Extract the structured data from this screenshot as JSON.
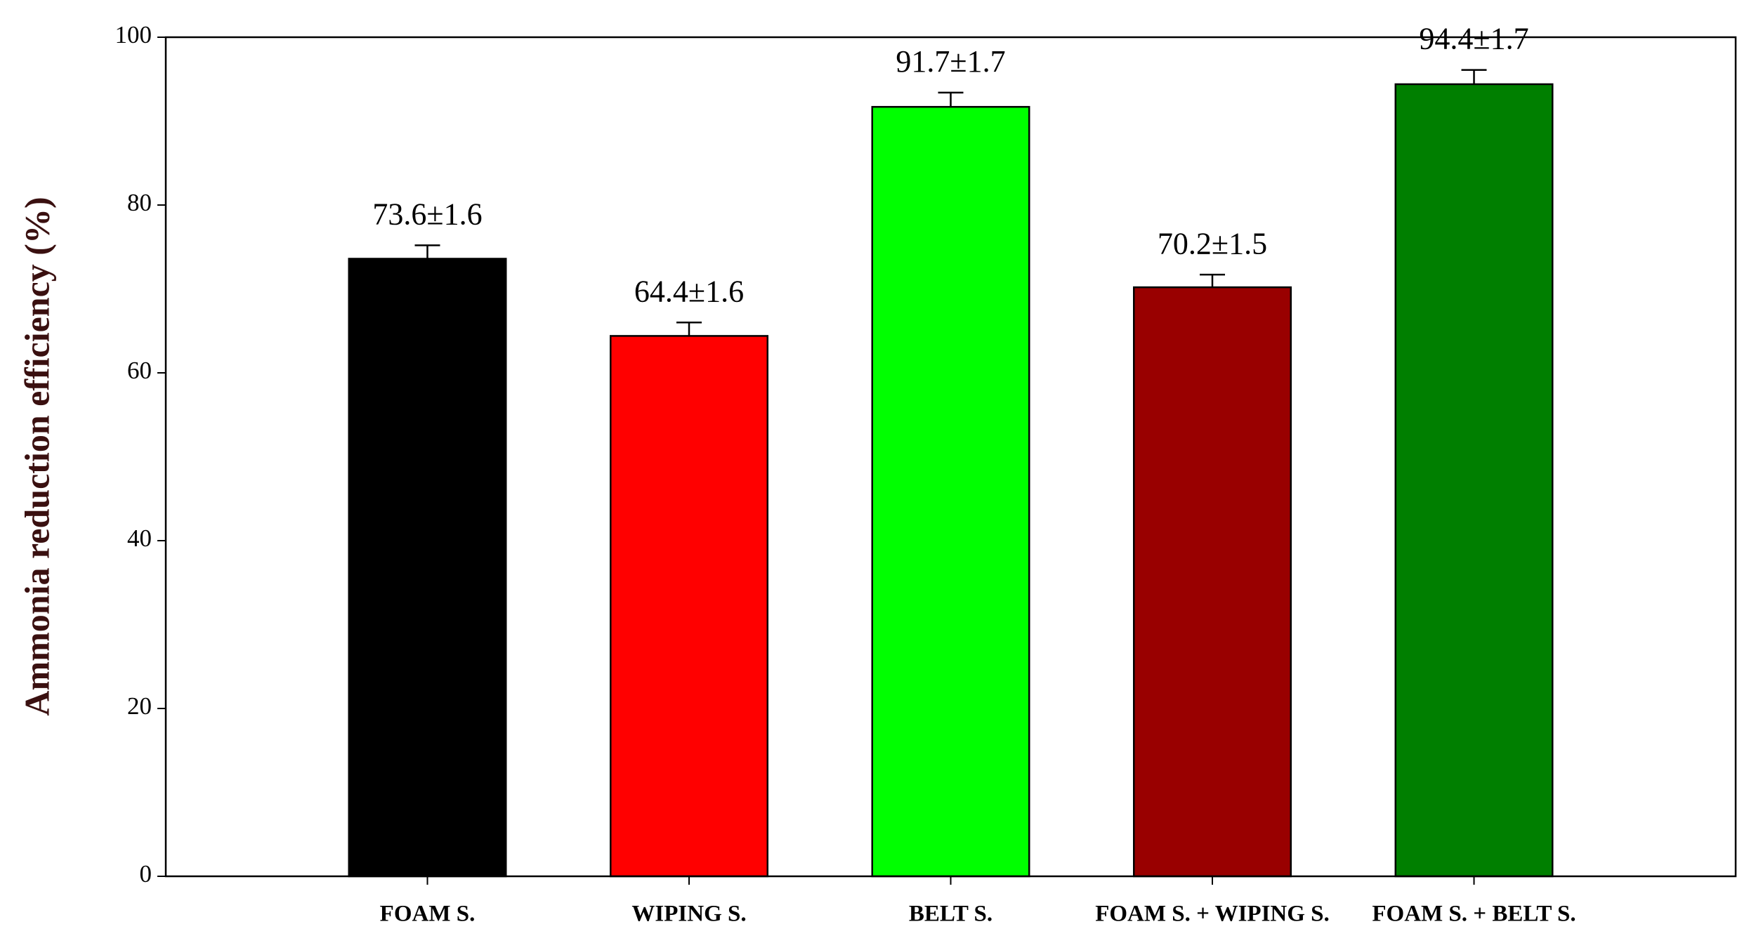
{
  "chart_data": {
    "type": "bar",
    "y_label": "Ammonia reduction efficiency (%)",
    "categories": [
      "FOAM S.",
      "WIPING S.",
      "BELT S.",
      "FOAM S. + WIPING S.",
      "FOAM S. + BELT S."
    ],
    "values": [
      73.6,
      64.4,
      91.7,
      70.2,
      94.4
    ],
    "errors": [
      1.6,
      1.6,
      1.7,
      1.5,
      1.7
    ],
    "value_labels": [
      "73.6±1.6",
      "64.4±1.6",
      "91.7±1.7",
      "70.2±1.5",
      "94.4±1.7"
    ],
    "colors": [
      "#000000",
      "#ff0000",
      "#00ff00",
      "#990000",
      "#007f00"
    ],
    "ylim": [
      0,
      100
    ],
    "yticks": [
      0,
      20,
      40,
      60,
      80,
      100
    ],
    "grid": false
  }
}
